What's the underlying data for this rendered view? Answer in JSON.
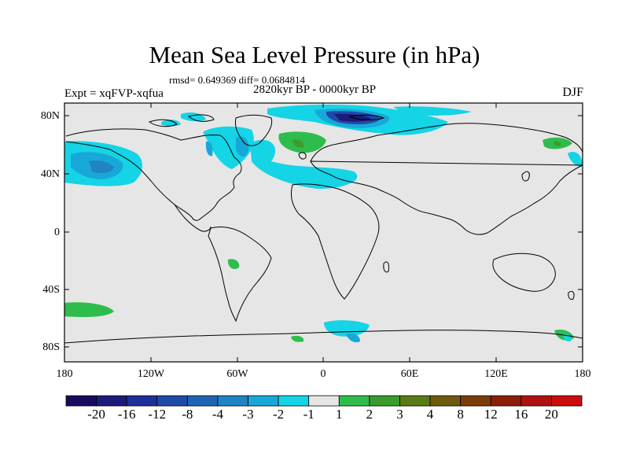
{
  "title": "Mean Sea Level Pressure (in hPa)",
  "stats_line": "rmsd= 0.649369 diff= 0.0684814",
  "period": "2820kyr BP - 0000kyr BP",
  "experiment": "Expt = xqFVP-xqfua",
  "season": "DJF",
  "map": {
    "longitude_ticks": [
      "180",
      "120W",
      "60W",
      "0",
      "60E",
      "120E",
      "180"
    ],
    "latitude_ticks": [
      "80N",
      "40N",
      "0",
      "40S",
      "80S"
    ],
    "background_color": "#e6e6e6",
    "coastline_color": "#000000"
  },
  "colorbar": {
    "labels": [
      "-20",
      "-16",
      "-12",
      "-8",
      "-4",
      "-3",
      "-2",
      "-1",
      "1",
      "2",
      "3",
      "4",
      "8",
      "12",
      "16",
      "20"
    ],
    "colors": [
      "#1a0a5e",
      "#1c1a7a",
      "#1f2f9a",
      "#1f4aa8",
      "#2065b3",
      "#1e84c4",
      "#18a8d8",
      "#14d4e6",
      "#e6e6e6",
      "#2ebd4d",
      "#3d9a2e",
      "#5a7a14",
      "#6e5a0e",
      "#7a3c0a",
      "#8c1e08",
      "#b01010",
      "#cc0c0c"
    ]
  }
}
